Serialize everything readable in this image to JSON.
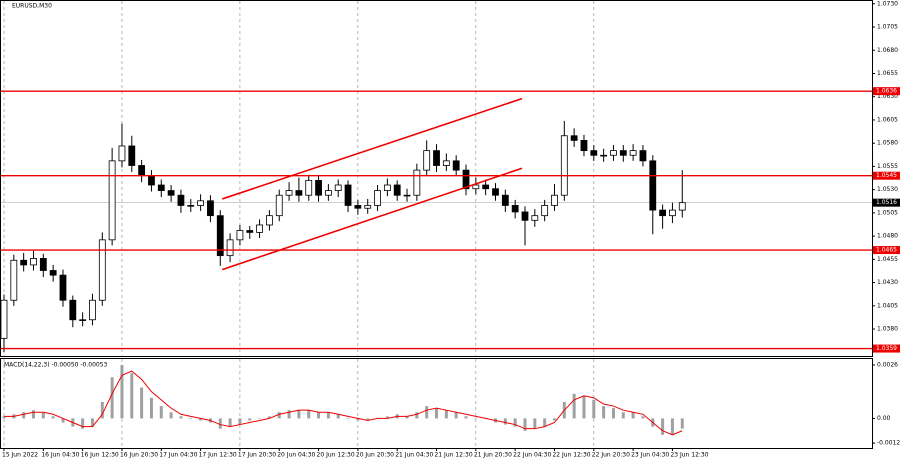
{
  "chart_data": [
    {
      "type": "candlestick",
      "title": "EURUSD,M30",
      "color": "#000000",
      "open": [
        1.037,
        1.0411,
        1.0454,
        1.0449,
        1.0456,
        1.0443,
        1.0438,
        1.0411,
        1.039,
        1.039,
        1.0411,
        1.0476,
        1.0561,
        1.0577,
        1.0556,
        1.0545,
        1.0535,
        1.0529,
        1.0524,
        1.0513,
        1.0513,
        1.0518,
        1.0502,
        1.0459,
        1.0476,
        1.0486,
        1.0484,
        1.0492,
        1.0502,
        1.0524,
        1.0529,
        1.0524,
        1.054,
        1.0524,
        1.0529,
        1.0535,
        1.0513,
        1.051,
        1.0513,
        1.0529,
        1.0535,
        1.0524,
        1.0524,
        1.0551,
        1.0572,
        1.0556,
        1.0561,
        1.0551,
        1.0531,
        1.0535,
        1.0531,
        1.0524,
        1.0513,
        1.0506,
        1.0497,
        1.0502,
        1.0513,
        1.0524,
        1.0588,
        1.0583,
        1.0572,
        1.0567,
        1.0567,
        1.0572,
        1.0567,
        1.0572,
        1.0561,
        1.0508,
        1.0502,
        1.0508
      ],
      "high": [
        1.0417,
        1.046,
        1.0462,
        1.0464,
        1.0461,
        1.0449,
        1.0444,
        1.0416,
        1.0398,
        1.0418,
        1.0484,
        1.0575,
        1.0601,
        1.0588,
        1.0562,
        1.0551,
        1.0541,
        1.0535,
        1.053,
        1.052,
        1.0525,
        1.0524,
        1.0508,
        1.0483,
        1.0492,
        1.0491,
        1.0498,
        1.0508,
        1.053,
        1.0538,
        1.0543,
        1.0546,
        1.0545,
        1.0536,
        1.0541,
        1.054,
        1.0519,
        1.052,
        1.0535,
        1.0542,
        1.054,
        1.0531,
        1.0558,
        1.0583,
        1.0579,
        1.0569,
        1.0567,
        1.0557,
        1.0543,
        1.0541,
        1.0537,
        1.053,
        1.0519,
        1.0512,
        1.0509,
        1.0519,
        1.0536,
        1.0604,
        1.0596,
        1.0589,
        1.0578,
        1.0574,
        1.0578,
        1.0578,
        1.0579,
        1.0578,
        1.0567,
        1.0514,
        1.0516,
        1.0551
      ],
      "low": [
        1.0355,
        1.0405,
        1.0442,
        1.0443,
        1.0436,
        1.0431,
        1.0404,
        1.0382,
        1.0383,
        1.0384,
        1.0405,
        1.047,
        1.0554,
        1.0549,
        1.0538,
        1.0528,
        1.0522,
        1.0517,
        1.0505,
        1.0506,
        1.0507,
        1.0495,
        1.0448,
        1.0452,
        1.047,
        1.0477,
        1.0478,
        1.0486,
        1.0496,
        1.0518,
        1.0517,
        1.0518,
        1.0517,
        1.0518,
        1.0522,
        1.0506,
        1.0503,
        1.0504,
        1.0507,
        1.0523,
        1.0518,
        1.0517,
        1.0518,
        1.0545,
        1.0549,
        1.055,
        1.0545,
        1.0524,
        1.0525,
        1.0524,
        1.0518,
        1.0506,
        1.0499,
        1.047,
        1.049,
        1.0496,
        1.0507,
        1.0518,
        1.0576,
        1.0566,
        1.0561,
        1.056,
        1.0561,
        1.056,
        1.0561,
        1.0555,
        1.0482,
        1.0488,
        1.0494,
        1.05
      ],
      "close": [
        1.0411,
        1.0454,
        1.0449,
        1.0456,
        1.0443,
        1.0438,
        1.0411,
        1.039,
        1.039,
        1.0411,
        1.0476,
        1.0561,
        1.0577,
        1.0556,
        1.0545,
        1.0535,
        1.0529,
        1.0524,
        1.0513,
        1.0513,
        1.0518,
        1.0502,
        1.0459,
        1.0476,
        1.0486,
        1.0484,
        1.0492,
        1.0502,
        1.0524,
        1.0529,
        1.0524,
        1.054,
        1.0524,
        1.0529,
        1.0535,
        1.0513,
        1.051,
        1.0513,
        1.0529,
        1.0535,
        1.0524,
        1.0524,
        1.0551,
        1.0572,
        1.0556,
        1.0561,
        1.0551,
        1.0531,
        1.0535,
        1.0531,
        1.0524,
        1.0513,
        1.0506,
        1.0497,
        1.0502,
        1.0513,
        1.0524,
        1.0588,
        1.0583,
        1.0572,
        1.0567,
        1.0567,
        1.0572,
        1.0567,
        1.0572,
        1.0561,
        1.0508,
        1.0502,
        1.0508,
        1.0516
      ],
      "ylim": [
        1.0351,
        1.0733
      ],
      "yticks": [
        {
          "value": 1.073,
          "label": "1.0730"
        },
        1.0705,
        {
          "value": 1.068,
          "label": "1.0680"
        },
        1.0655,
        {
          "value": 1.063,
          "label": "1.0630"
        },
        1.0605,
        {
          "value": 1.058,
          "label": "1.0580"
        },
        1.0555,
        {
          "value": 1.053,
          "label": "1.0530"
        },
        1.0505,
        {
          "value": 1.048,
          "label": "1.0480"
        },
        1.0455,
        {
          "value": 1.043,
          "label": "1.0430"
        },
        1.0405,
        {
          "value": 1.038,
          "label": "1.0380"
        }
      ],
      "xticks": [
        {
          "value": 0,
          "label": "15 Jun 2022"
        },
        {
          "value": 4,
          "label": "16 Jun 04:30"
        },
        {
          "value": 8,
          "label": "16 Jun 12:30"
        },
        {
          "value": 12,
          "label": "16 Jun 20:30"
        },
        {
          "value": 16,
          "label": "17 Jun 04:30"
        },
        {
          "value": 20,
          "label": "17 Jun 12:30"
        },
        {
          "value": 24,
          "label": "17 Jun 20:30"
        },
        {
          "value": 28,
          "label": "20 Jun 04:30"
        },
        {
          "value": 32,
          "label": "20 Jun 12:30"
        },
        {
          "value": 36,
          "label": "20 Jun 20:30"
        },
        {
          "value": 40,
          "label": "21 Jun 04:30"
        },
        {
          "value": 44,
          "label": "21 Jun 12:30"
        },
        {
          "value": 48,
          "label": "21 Jun 20:30"
        },
        {
          "value": 52,
          "label": "22 Jun 04:30"
        },
        {
          "value": 56,
          "label": "22 Jun 12:30"
        },
        {
          "value": 60,
          "label": "22 Jun 20:30"
        },
        {
          "value": 64,
          "label": "23 Jun 04:30"
        },
        {
          "value": 68,
          "label": "23 Jun 12:30"
        }
      ],
      "levels": [
        1.0636,
        1.0545,
        1.0465,
        1.0359
      ],
      "level_color": "#ee0000",
      "last_price": 1.0516,
      "trendlines": [
        {
          "start": [
            22.2,
            1.052
          ],
          "end": [
            52.7,
            1.0628
          ]
        },
        {
          "start": [
            22.2,
            1.0444
          ],
          "end": [
            52.7,
            1.0553
          ]
        }
      ],
      "grid": true
    },
    {
      "type": "macd",
      "title": "MACD(14,22,3) -0.00050 -0.00053",
      "series": [
        {
          "color": "#a0a0a0",
          "values": [
            0.0001,
            0.0002,
            0.0003,
            0.0004,
            0.0003,
            0.0001,
            -0.0002,
            -0.0004,
            -0.0005,
            -0.0004,
            0.0008,
            0.002,
            0.0026,
            0.0022,
            0.0015,
            0.001,
            0.0006,
            0.0003,
            0.0001,
            0,
            -0.0001,
            -0.0002,
            -0.0005,
            -0.0004,
            -0.0003,
            -0.0001,
            0,
            0.0001,
            0.0003,
            0.0004,
            0.0004,
            0.0004,
            0.0003,
            0.0003,
            0.0002,
            0,
            -0.0001,
            -0.0001,
            0,
            0.0001,
            0.0002,
            0.0001,
            0.0003,
            0.0006,
            0.0005,
            0.0004,
            0.0003,
            0.0001,
            0,
            0,
            -0.0002,
            -0.0003,
            -0.0004,
            -0.0006,
            -0.0005,
            -0.0004,
            -0.0001,
            0.0008,
            0.0012,
            0.0011,
            0.0009,
            0.0006,
            0.0005,
            0.0003,
            0.0003,
            0.0001,
            -0.0004,
            -0.0008,
            -0.0008,
            -0.0005
          ]
        },
        {
          "color": "#ee0000",
          "values": [
            0.0001,
            0.0001,
            0.0002,
            0.0003,
            0.0003,
            0.0002,
            0,
            -0.0002,
            -0.0004,
            -0.0004,
            0.0002,
            0.0012,
            0.0021,
            0.0023,
            0.0019,
            0.0013,
            0.0009,
            0.0005,
            0.0002,
            0.0001,
            0,
            -0.0001,
            -0.0003,
            -0.0004,
            -0.0003,
            -0.0002,
            -0.0001,
            0,
            0.0002,
            0.0003,
            0.0004,
            0.0004,
            0.0003,
            0.0003,
            0.0002,
            0.0001,
            0,
            -0.0001,
            0,
            0,
            0.0001,
            0.0001,
            0.0002,
            0.0004,
            0.0005,
            0.0004,
            0.0003,
            0.0002,
            0.0001,
            0,
            -0.0001,
            -0.0002,
            -0.0003,
            -0.0005,
            -0.0005,
            -0.0004,
            -0.0002,
            0.0004,
            0.0009,
            0.0011,
            0.001,
            0.0007,
            0.0006,
            0.0004,
            0.0003,
            0.0002,
            -0.0002,
            -0.0006,
            -0.0008,
            -0.0006
          ]
        }
      ],
      "ylim": [
        -0.00144,
        0.00289
      ],
      "yticks": [
        0.0026,
        {
          "value": 0,
          "label": "0.00"
        },
        {
          "value": -0.0012,
          "label": "-0.0012"
        }
      ]
    }
  ]
}
